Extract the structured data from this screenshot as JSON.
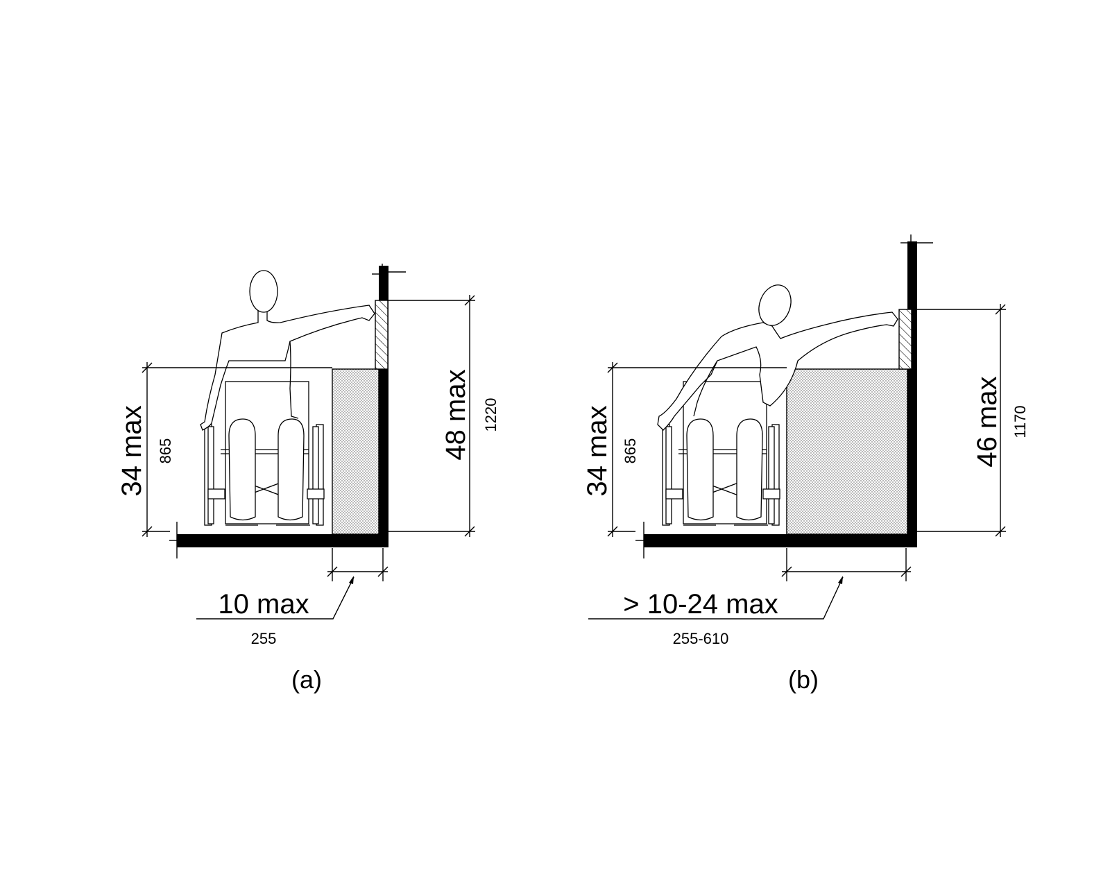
{
  "panel_a": {
    "caption": "(a)",
    "obstruction_height": "34 max",
    "obstruction_height_mm": "865",
    "reach_height": "48 max",
    "reach_height_mm": "1220",
    "reach_depth": "10 max",
    "reach_depth_mm": "255"
  },
  "panel_b": {
    "caption": "(b)",
    "obstruction_height": "34 max",
    "obstruction_height_mm": "865",
    "reach_height": "46 max",
    "reach_height_mm": "1170",
    "reach_depth": "> 10-24 max",
    "reach_depth_mm": "255-610"
  },
  "icons": {
    "figure": "wheelchair-user-figure-icon",
    "obstruction": "counter-obstruction-icon",
    "control": "wall-control-icon"
  }
}
